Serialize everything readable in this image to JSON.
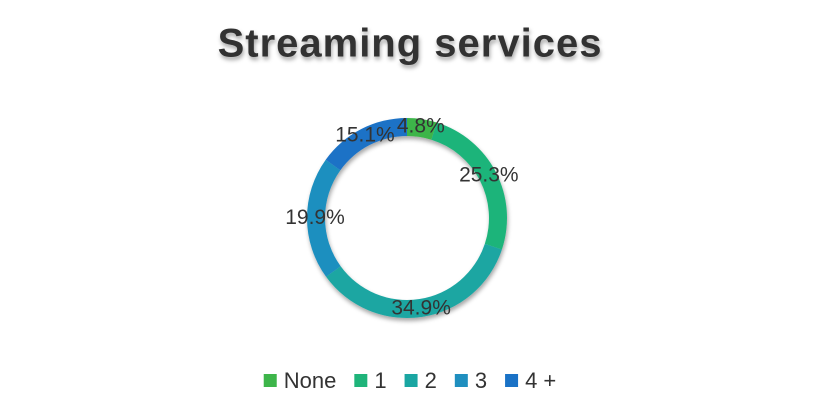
{
  "chart_data": {
    "type": "donut",
    "title": "Streaming services",
    "categories": [
      "None",
      "1",
      "2",
      "3",
      "4 +"
    ],
    "values": [
      4.8,
      25.3,
      34.9,
      19.9,
      15.1
    ],
    "value_labels": [
      "4.8%",
      "25.3%",
      "34.9%",
      "19.9%",
      "15.1%"
    ],
    "colors": [
      "#3db54a",
      "#1fb47a",
      "#1aa6a2",
      "#1f8fbf",
      "#1a72c6"
    ],
    "legend": "bottom"
  }
}
